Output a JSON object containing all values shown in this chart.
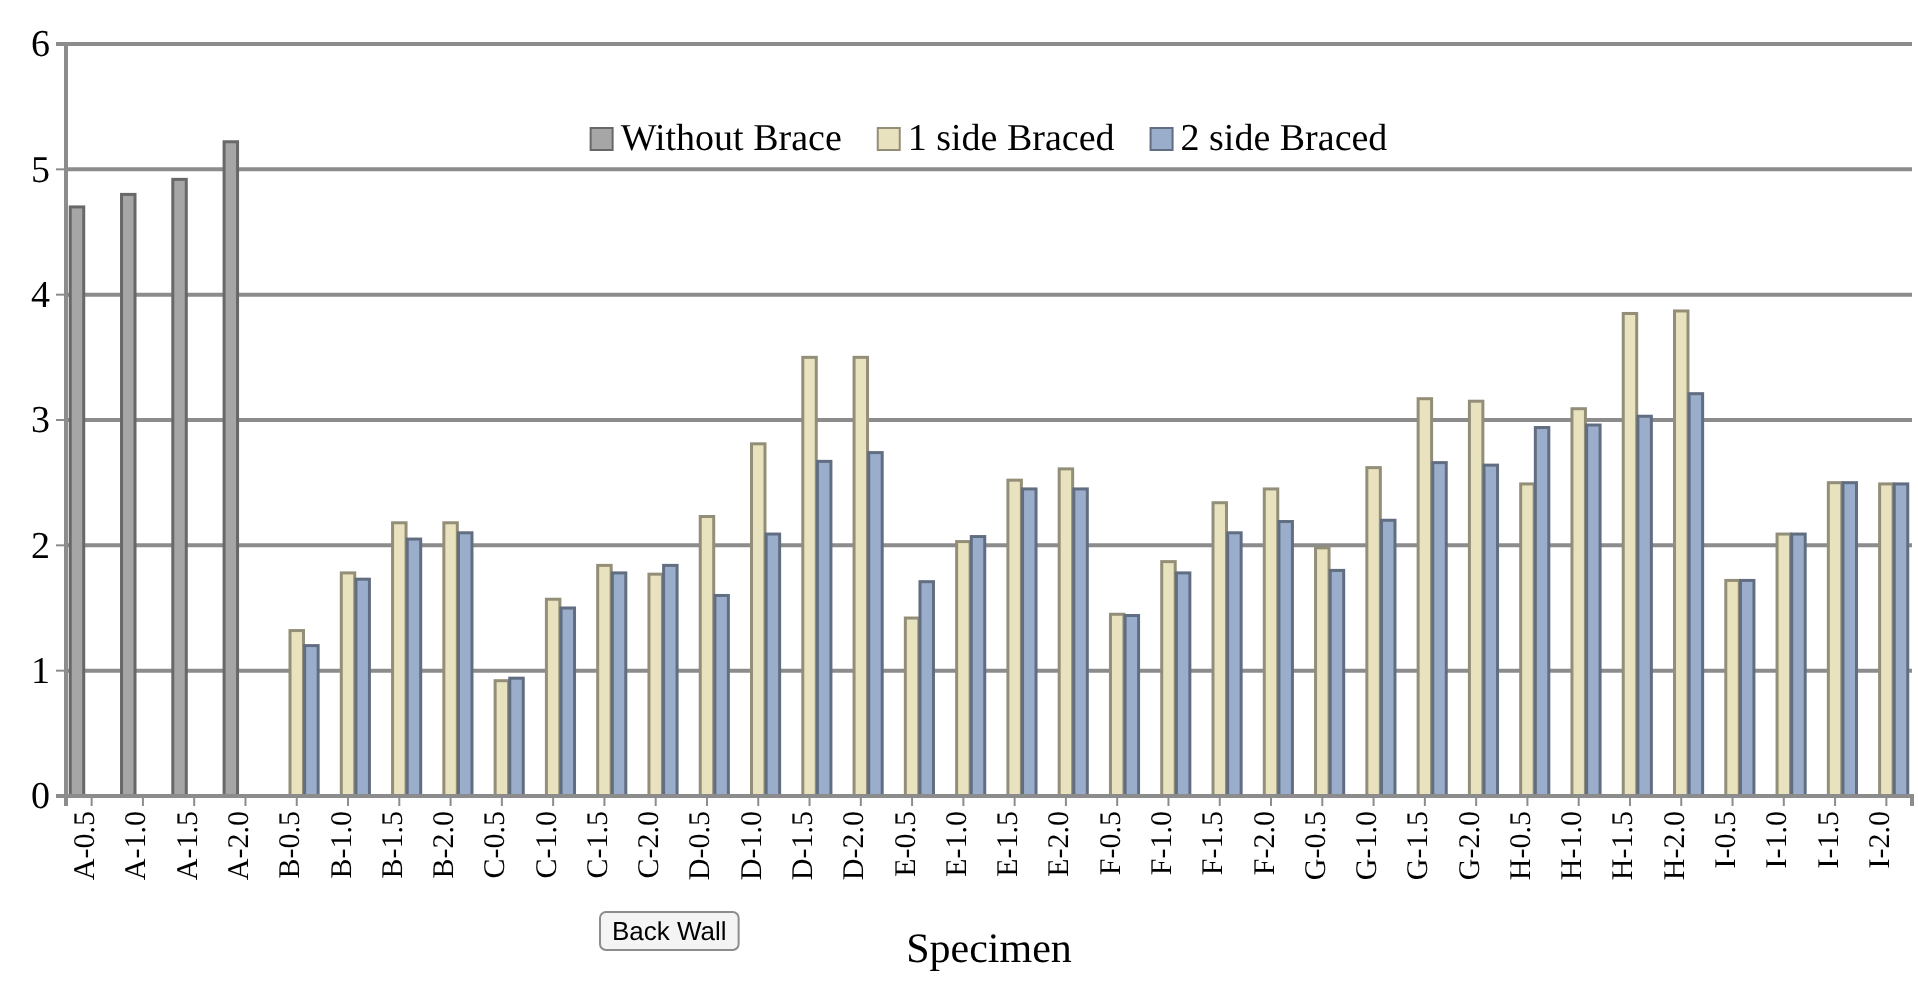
{
  "chart_data": {
    "type": "bar",
    "xlabel": "Specimen",
    "annotations": [
      "Back Wall"
    ],
    "categories": [
      "A-0.5",
      "A-1.0",
      "A-1.5",
      "A-2.0",
      "B-0.5",
      "B-1.0",
      "B-1.5",
      "B-2.0",
      "C-0.5",
      "C-1.0",
      "C-1.5",
      "C-2.0",
      "D-0.5",
      "D-1.0",
      "D-1.5",
      "D-2.0",
      "E-0.5",
      "E-1.0",
      "E-1.5",
      "E-2.0",
      "F-0.5",
      "F-1.0",
      "F-1.5",
      "F-2.0",
      "G-0.5",
      "G-1.0",
      "G-1.5",
      "G-2.0",
      "H-0.5",
      "H-1.0",
      "H-1.5",
      "H-2.0",
      "I-0.5",
      "I-1.0",
      "I-1.5",
      "I-2.0"
    ],
    "series": [
      {
        "name": "Without Brace",
        "color": "#a6a6a6",
        "values": [
          4.7,
          4.8,
          4.92,
          5.22,
          null,
          null,
          null,
          null,
          null,
          null,
          null,
          null,
          null,
          null,
          null,
          null,
          null,
          null,
          null,
          null,
          null,
          null,
          null,
          null,
          null,
          null,
          null,
          null,
          null,
          null,
          null,
          null,
          null,
          null,
          null,
          null
        ]
      },
      {
        "name": "1 side Braced",
        "color": "#e9e2bf",
        "values": [
          0,
          0,
          0,
          0,
          1.32,
          1.78,
          2.18,
          2.18,
          0.92,
          1.57,
          1.84,
          1.77,
          2.23,
          2.81,
          3.5,
          3.5,
          1.42,
          2.03,
          2.52,
          2.61,
          1.45,
          1.87,
          2.34,
          2.45,
          1.98,
          2.62,
          3.17,
          3.15,
          2.49,
          3.09,
          3.85,
          3.87,
          1.72,
          2.09,
          2.5,
          2.49
        ]
      },
      {
        "name": "2 side Braced",
        "color": "#9aaecb",
        "values": [
          0,
          0,
          0,
          0,
          1.2,
          1.73,
          2.05,
          2.1,
          0.94,
          1.5,
          1.78,
          1.84,
          1.6,
          2.09,
          2.67,
          2.74,
          1.71,
          2.07,
          2.45,
          2.45,
          1.44,
          1.78,
          2.1,
          2.19,
          1.8,
          2.2,
          2.66,
          2.64,
          2.94,
          2.96,
          3.03,
          3.21,
          1.72,
          2.09,
          2.5,
          2.49
        ]
      }
    ],
    "ylim": [
      0,
      6
    ],
    "yticks": [
      0,
      1,
      2,
      3,
      4,
      5,
      6
    ],
    "grid": "y",
    "legend": "top"
  }
}
